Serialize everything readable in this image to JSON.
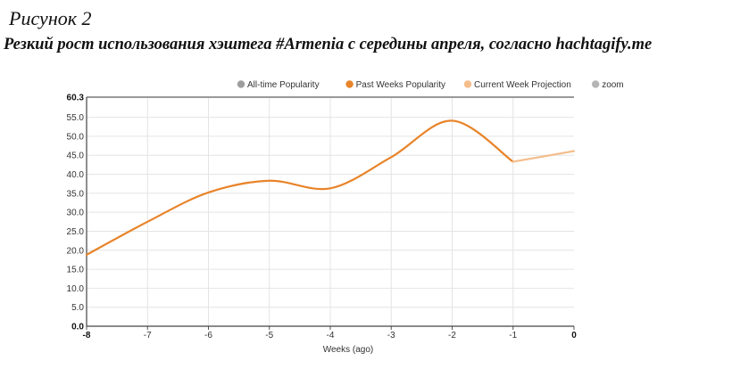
{
  "figure": {
    "caption": "Рисунок 2",
    "title": "Резкий рост использования хэштега #Armenia с середины апреля, согласно hachtagify.me"
  },
  "chart_data": {
    "type": "line",
    "xlabel": "Weeks (ago)",
    "ylabel": "",
    "xlim": [
      -8,
      0
    ],
    "ylim": [
      0,
      60.3
    ],
    "yticks": [
      0,
      5,
      10,
      15,
      20,
      25,
      30,
      35,
      40,
      45,
      50,
      55,
      60.3
    ],
    "ytick_labels": [
      "0.0",
      "5.0",
      "10.0",
      "15.0",
      "20.0",
      "25.0",
      "30.0",
      "35.0",
      "40.0",
      "45.0",
      "50.0",
      "55.0",
      "60.3"
    ],
    "xticks": [
      -8,
      -7,
      -6,
      -5,
      -4,
      -3,
      -2,
      -1,
      0
    ],
    "xtick_labels": [
      "-8",
      "-7",
      "-6",
      "-5",
      "-4",
      "-3",
      "-2",
      "-1",
      "0"
    ],
    "grid": true,
    "legend_position": "top-right",
    "legend": [
      {
        "label": "All-time Popularity",
        "color": "#9e9e9e"
      },
      {
        "label": "Past Weeks Popularity",
        "color": "#e8842a"
      },
      {
        "label": "Current Week Projection",
        "color": "#f4bd8c"
      },
      {
        "label": "zoom",
        "color": "#b5b5b5"
      }
    ],
    "series": [
      {
        "name": "Past Weeks Popularity",
        "color": "#e8842a",
        "x": [
          -8,
          -7,
          -6,
          -5,
          -4,
          -3,
          -2,
          -1
        ],
        "y": [
          18.8,
          27.5,
          35.2,
          38.3,
          36.3,
          44.5,
          54.1,
          43.3
        ]
      },
      {
        "name": "Current Week Projection",
        "color": "#f4bd8c",
        "x": [
          -1,
          0
        ],
        "y": [
          43.3,
          46.1
        ]
      }
    ]
  }
}
